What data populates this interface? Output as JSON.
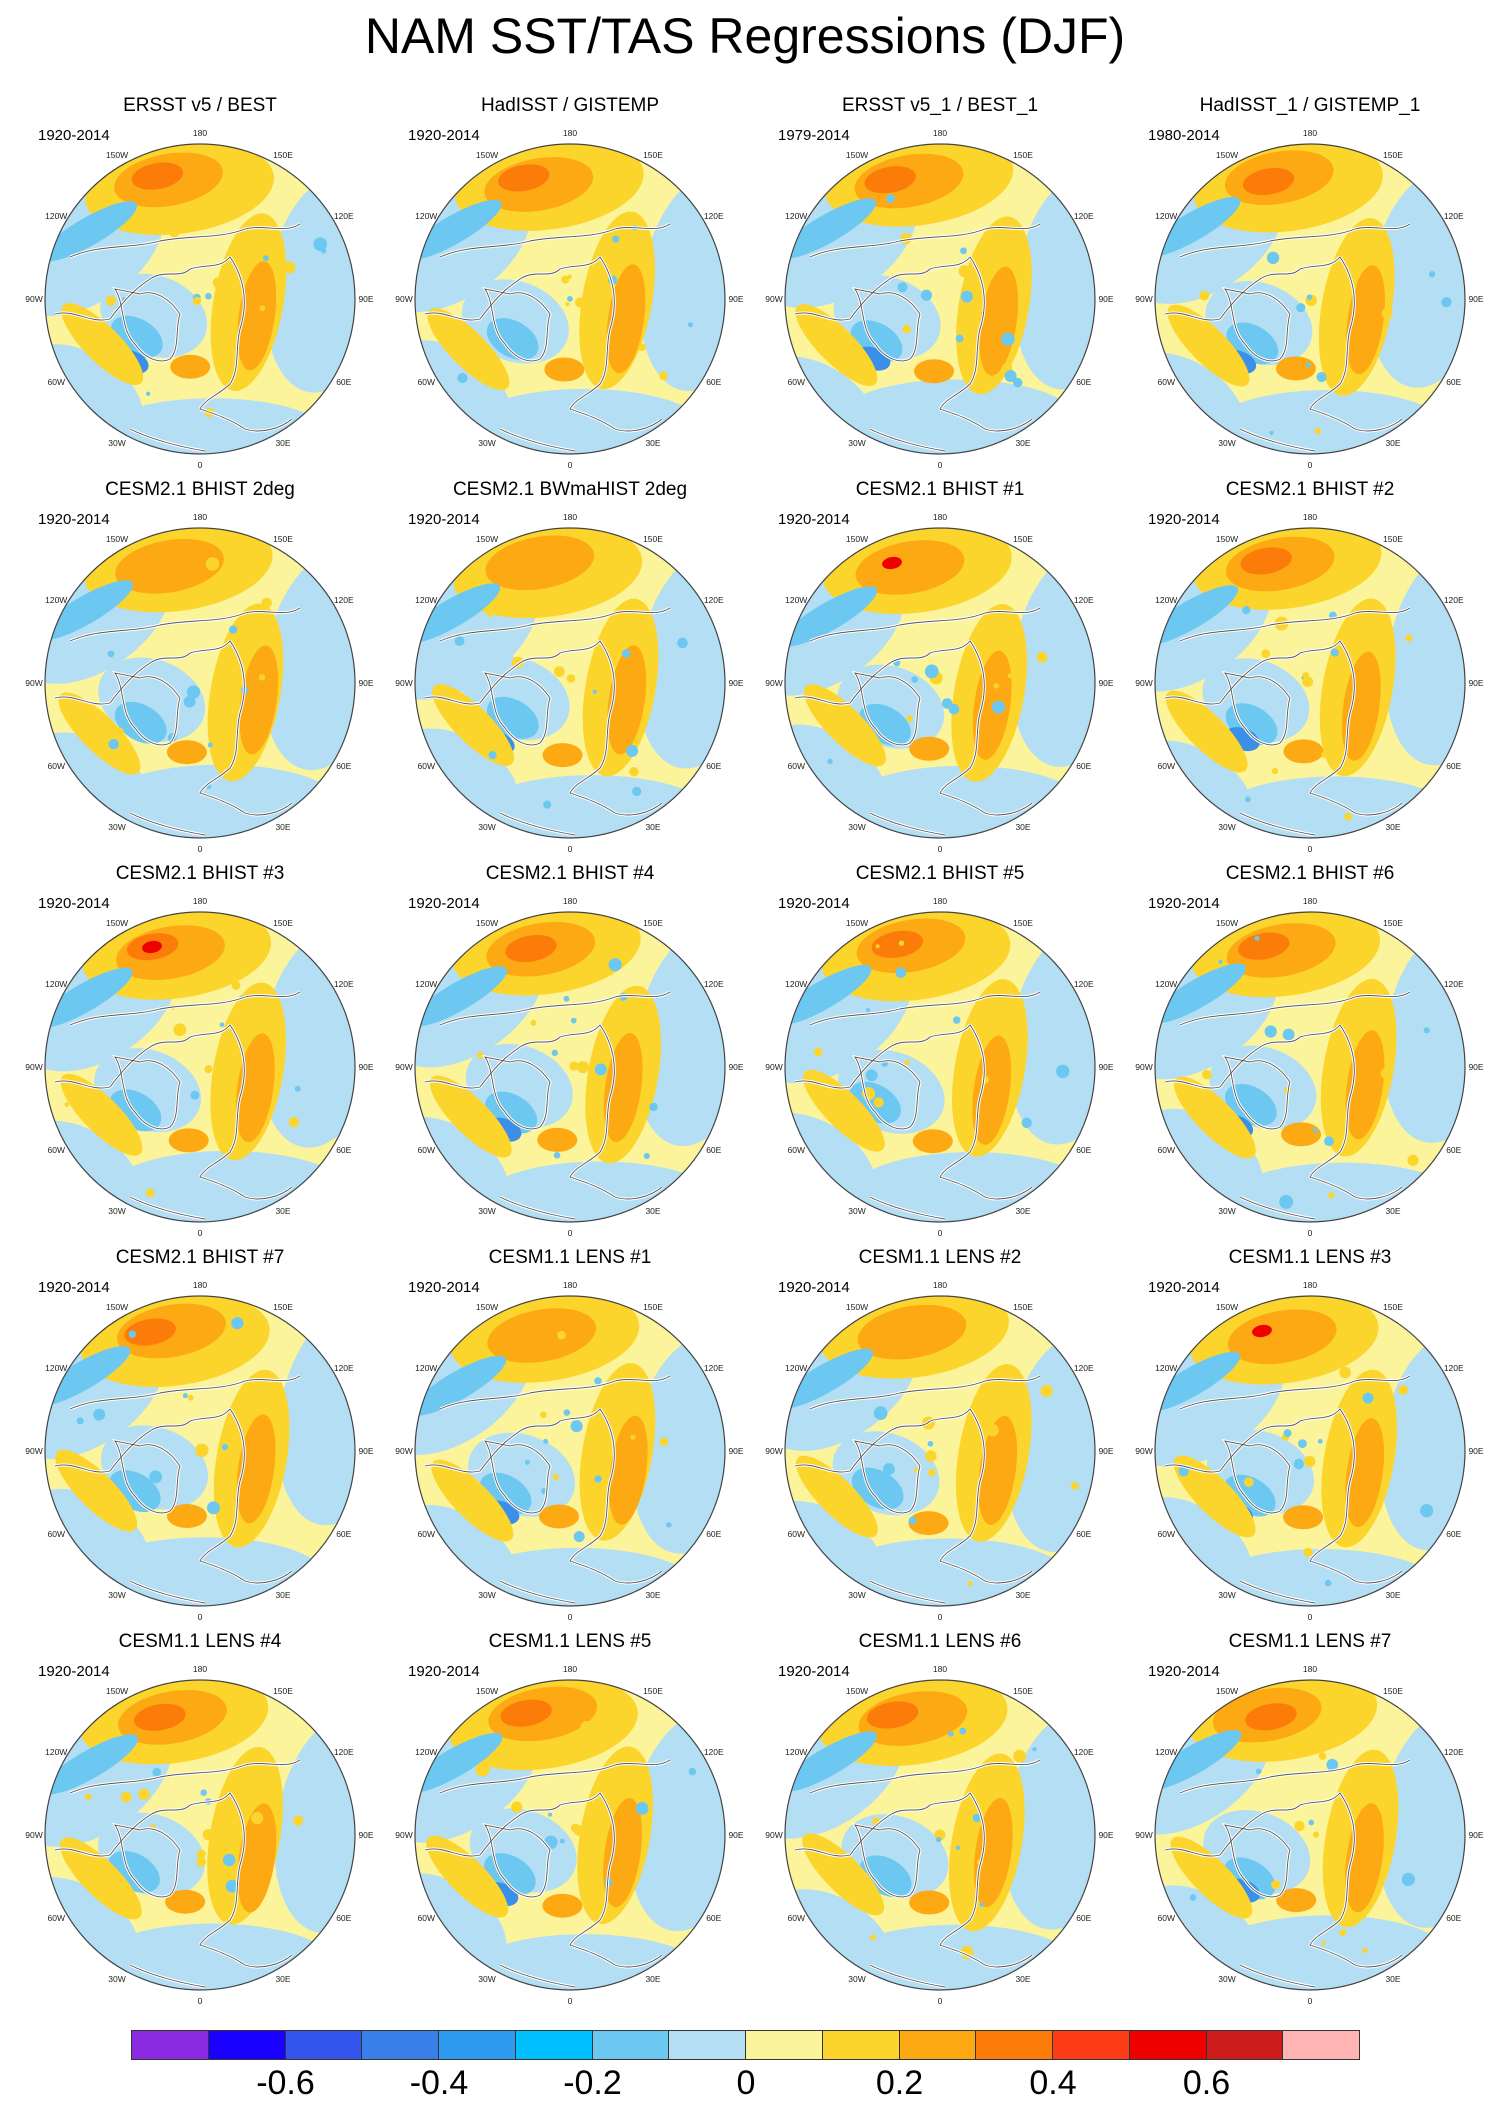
{
  "title": "NAM SST/TAS Regressions (DJF)",
  "lon_labels": [
    "180",
    "150E",
    "120E",
    "90E",
    "60E",
    "30E",
    "0",
    "30W",
    "60W",
    "90W",
    "120W",
    "150W"
  ],
  "panels": [
    {
      "title": "ERSST v5 / BEST",
      "period": "1920-2014"
    },
    {
      "title": "HadISST / GISTEMP",
      "period": "1920-2014"
    },
    {
      "title": "ERSST v5_1 / BEST_1",
      "period": "1979-2014"
    },
    {
      "title": "HadISST_1 / GISTEMP_1",
      "period": "1980-2014"
    },
    {
      "title": "CESM2.1 BHIST 2deg",
      "period": "1920-2014"
    },
    {
      "title": "CESM2.1 BWmaHIST 2deg",
      "period": "1920-2014"
    },
    {
      "title": "CESM2.1 BHIST #1",
      "period": "1920-2014"
    },
    {
      "title": "CESM2.1 BHIST #2",
      "period": "1920-2014"
    },
    {
      "title": "CESM2.1 BHIST #3",
      "period": "1920-2014"
    },
    {
      "title": "CESM2.1 BHIST #4",
      "period": "1920-2014"
    },
    {
      "title": "CESM2.1 BHIST #5",
      "period": "1920-2014"
    },
    {
      "title": "CESM2.1 BHIST #6",
      "period": "1920-2014"
    },
    {
      "title": "CESM2.1 BHIST #7",
      "period": "1920-2014"
    },
    {
      "title": "CESM1.1 LENS #1",
      "period": "1920-2014"
    },
    {
      "title": "CESM1.1 LENS #2",
      "period": "1920-2014"
    },
    {
      "title": "CESM1.1 LENS #3",
      "period": "1920-2014"
    },
    {
      "title": "CESM1.1 LENS #4",
      "period": "1920-2014"
    },
    {
      "title": "CESM1.1 LENS #5",
      "period": "1920-2014"
    },
    {
      "title": "CESM1.1 LENS #6",
      "period": "1920-2014"
    },
    {
      "title": "CESM1.1 LENS #7",
      "period": "1920-2014"
    }
  ],
  "colorbar": {
    "colors": [
      "#8a2be2",
      "#1a00ff",
      "#3355ee",
      "#3a7fe8",
      "#2e9bf0",
      "#00bfff",
      "#6cc8f0",
      "#b4def4",
      "#fbf49a",
      "#fcd52c",
      "#fca914",
      "#fc7c0a",
      "#fc3c14",
      "#ee0000",
      "#cc1c1c",
      "#ffb4b4"
    ],
    "labels": [
      "-0.6",
      "-0.4",
      "-0.2",
      "0",
      "0.2",
      "0.4",
      "0.6"
    ],
    "label_values": [
      -0.6,
      -0.4,
      -0.2,
      0,
      0.2,
      0.4,
      0.6
    ],
    "range": [
      -0.8,
      0.8
    ]
  },
  "colors": {
    "neg_light": "#b4def4",
    "neg_mid": "#6cc8f0",
    "neg_strong": "#3a8fe8",
    "pos_light": "#fbf49a",
    "pos_mid": "#fcd52c",
    "pos_strong": "#fca914",
    "pos_max": "#fc7c0a",
    "extreme": "#ee0000",
    "land_outline": "#ffffff",
    "coast_outline": "#555555"
  }
}
